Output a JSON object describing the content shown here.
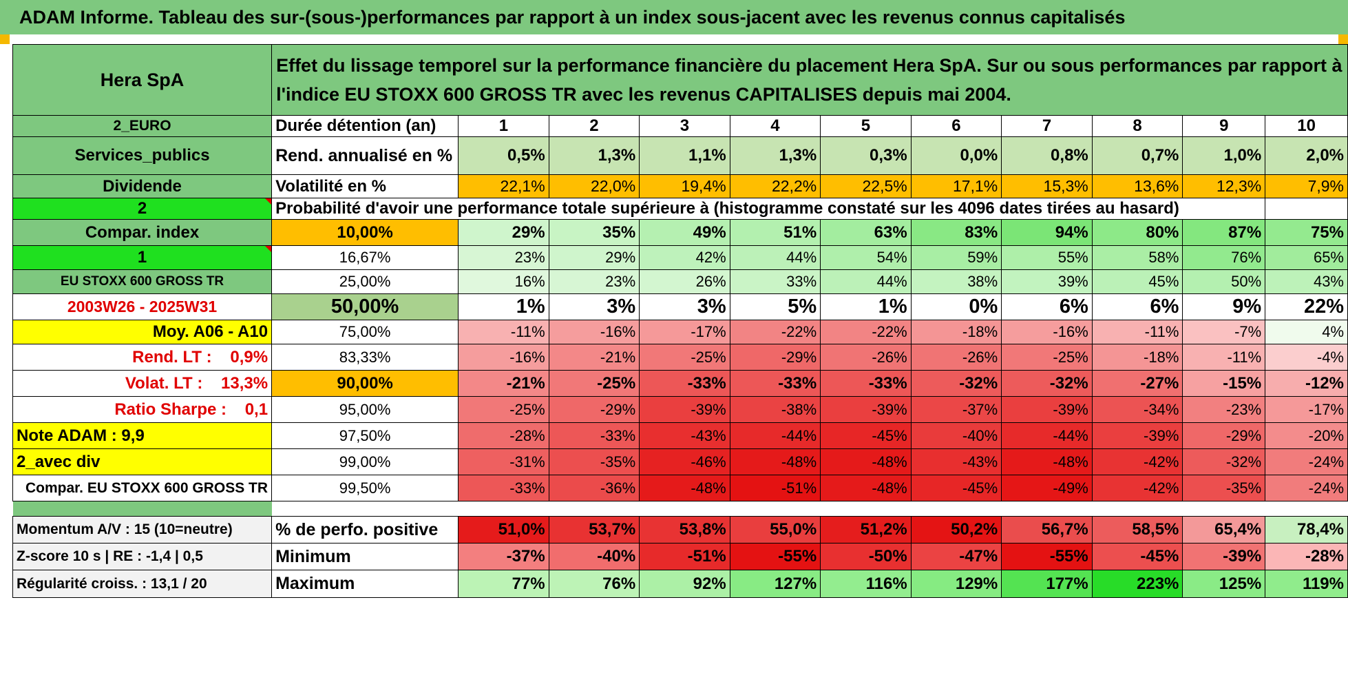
{
  "title": "ADAM Informe. Tableau des sur-(sous-)performances par rapport à un index sous-jacent avec les revenus connus capitalisés",
  "colors": {
    "header_green": "#7ec87f",
    "lime": "#1fe01f",
    "yellow": "#ffff00",
    "orange": "#ffbe00",
    "red_text": "#e00000"
  },
  "left": {
    "company": "Hera SpA",
    "currency": "2_EURO",
    "sector": "Services_publics",
    "dividend": "Dividende",
    "two": "2",
    "compar_index": "Compar. index",
    "one": "1",
    "index_name": "EU STOXX 600 GROSS TR",
    "period": "2003W26 - 2025W31",
    "moy": "Moy. A06 - A10",
    "rend_lt": "Rend. LT :    0,9%",
    "volat_lt": "Volat. LT :    13,3%",
    "sharpe": "Ratio Sharpe :    0,1",
    "note": "Note ADAM : 9,9",
    "avec_div": "2_avec div",
    "compar_full": "Compar. EU STOXX 600 GROSS TR",
    "momentum": "Momentum A/V : 15 (10=neutre)",
    "zscore": "Z-score 10 s | RE : -1,4 | 0,5",
    "regularite": "Régularité croiss. : 13,1 / 20"
  },
  "effect_header": "Effet du lissage temporel sur la performance financière du placement Hera SpA. Sur ou sous performances par rapport à l'indice EU STOXX 600 GROSS TR avec les revenus CAPITALISES depuis mai 2004.",
  "labels": {
    "duree": "Durée détention (an)",
    "rend": "Rend. annualisé en %",
    "vol": "Volatilité en %",
    "prob": "Probabilité d'avoir une performance totale supérieure à (histogramme constaté sur les 4096 dates tirées au hasard)",
    "pos": "% de perfo. positive",
    "min": "Minimum",
    "max": "Maximum"
  },
  "years": [
    "1",
    "2",
    "3",
    "4",
    "5",
    "6",
    "7",
    "8",
    "9",
    "10"
  ],
  "rend": [
    "0,5%",
    "1,3%",
    "1,1%",
    "1,3%",
    "0,3%",
    "0,0%",
    "0,8%",
    "0,7%",
    "1,0%",
    "2,0%"
  ],
  "vol": [
    "22,1%",
    "22,0%",
    "19,4%",
    "22,2%",
    "22,5%",
    "17,1%",
    "15,3%",
    "13,6%",
    "12,3%",
    "7,9%"
  ],
  "quantile_rows": [
    {
      "q": "10,00%",
      "vals": [
        "29%",
        "35%",
        "49%",
        "51%",
        "63%",
        "83%",
        "94%",
        "80%",
        "87%",
        "75%"
      ]
    },
    {
      "q": "16,67%",
      "vals": [
        "23%",
        "29%",
        "42%",
        "44%",
        "54%",
        "59%",
        "55%",
        "58%",
        "76%",
        "65%"
      ]
    },
    {
      "q": "25,00%",
      "vals": [
        "16%",
        "23%",
        "26%",
        "33%",
        "44%",
        "38%",
        "39%",
        "45%",
        "50%",
        "43%"
      ]
    },
    {
      "q": "50,00%",
      "vals": [
        "1%",
        "3%",
        "3%",
        "5%",
        "1%",
        "0%",
        "6%",
        "6%",
        "9%",
        "22%"
      ]
    },
    {
      "q": "75,00%",
      "vals": [
        "-11%",
        "-16%",
        "-17%",
        "-22%",
        "-22%",
        "-18%",
        "-16%",
        "-11%",
        "-7%",
        "4%"
      ]
    },
    {
      "q": "83,33%",
      "vals": [
        "-16%",
        "-21%",
        "-25%",
        "-29%",
        "-26%",
        "-26%",
        "-25%",
        "-18%",
        "-11%",
        "-4%"
      ]
    },
    {
      "q": "90,00%",
      "vals": [
        "-21%",
        "-25%",
        "-33%",
        "-33%",
        "-33%",
        "-32%",
        "-32%",
        "-27%",
        "-15%",
        "-12%"
      ]
    },
    {
      "q": "95,00%",
      "vals": [
        "-25%",
        "-29%",
        "-39%",
        "-38%",
        "-39%",
        "-37%",
        "-39%",
        "-34%",
        "-23%",
        "-17%"
      ]
    },
    {
      "q": "97,50%",
      "vals": [
        "-28%",
        "-33%",
        "-43%",
        "-44%",
        "-45%",
        "-40%",
        "-44%",
        "-39%",
        "-29%",
        "-20%"
      ]
    },
    {
      "q": "99,00%",
      "vals": [
        "-31%",
        "-35%",
        "-46%",
        "-48%",
        "-48%",
        "-43%",
        "-48%",
        "-42%",
        "-32%",
        "-24%"
      ]
    },
    {
      "q": "99,50%",
      "vals": [
        "-33%",
        "-36%",
        "-48%",
        "-51%",
        "-48%",
        "-45%",
        "-49%",
        "-42%",
        "-35%",
        "-24%"
      ]
    }
  ],
  "pos": [
    "51,0%",
    "53,7%",
    "53,8%",
    "55,0%",
    "51,2%",
    "50,2%",
    "56,7%",
    "58,5%",
    "65,4%",
    "78,4%"
  ],
  "min": [
    "-37%",
    "-40%",
    "-51%",
    "-55%",
    "-50%",
    "-47%",
    "-55%",
    "-45%",
    "-39%",
    "-28%"
  ],
  "max": [
    "77%",
    "76%",
    "92%",
    "127%",
    "116%",
    "129%",
    "177%",
    "223%",
    "125%",
    "119%"
  ]
}
